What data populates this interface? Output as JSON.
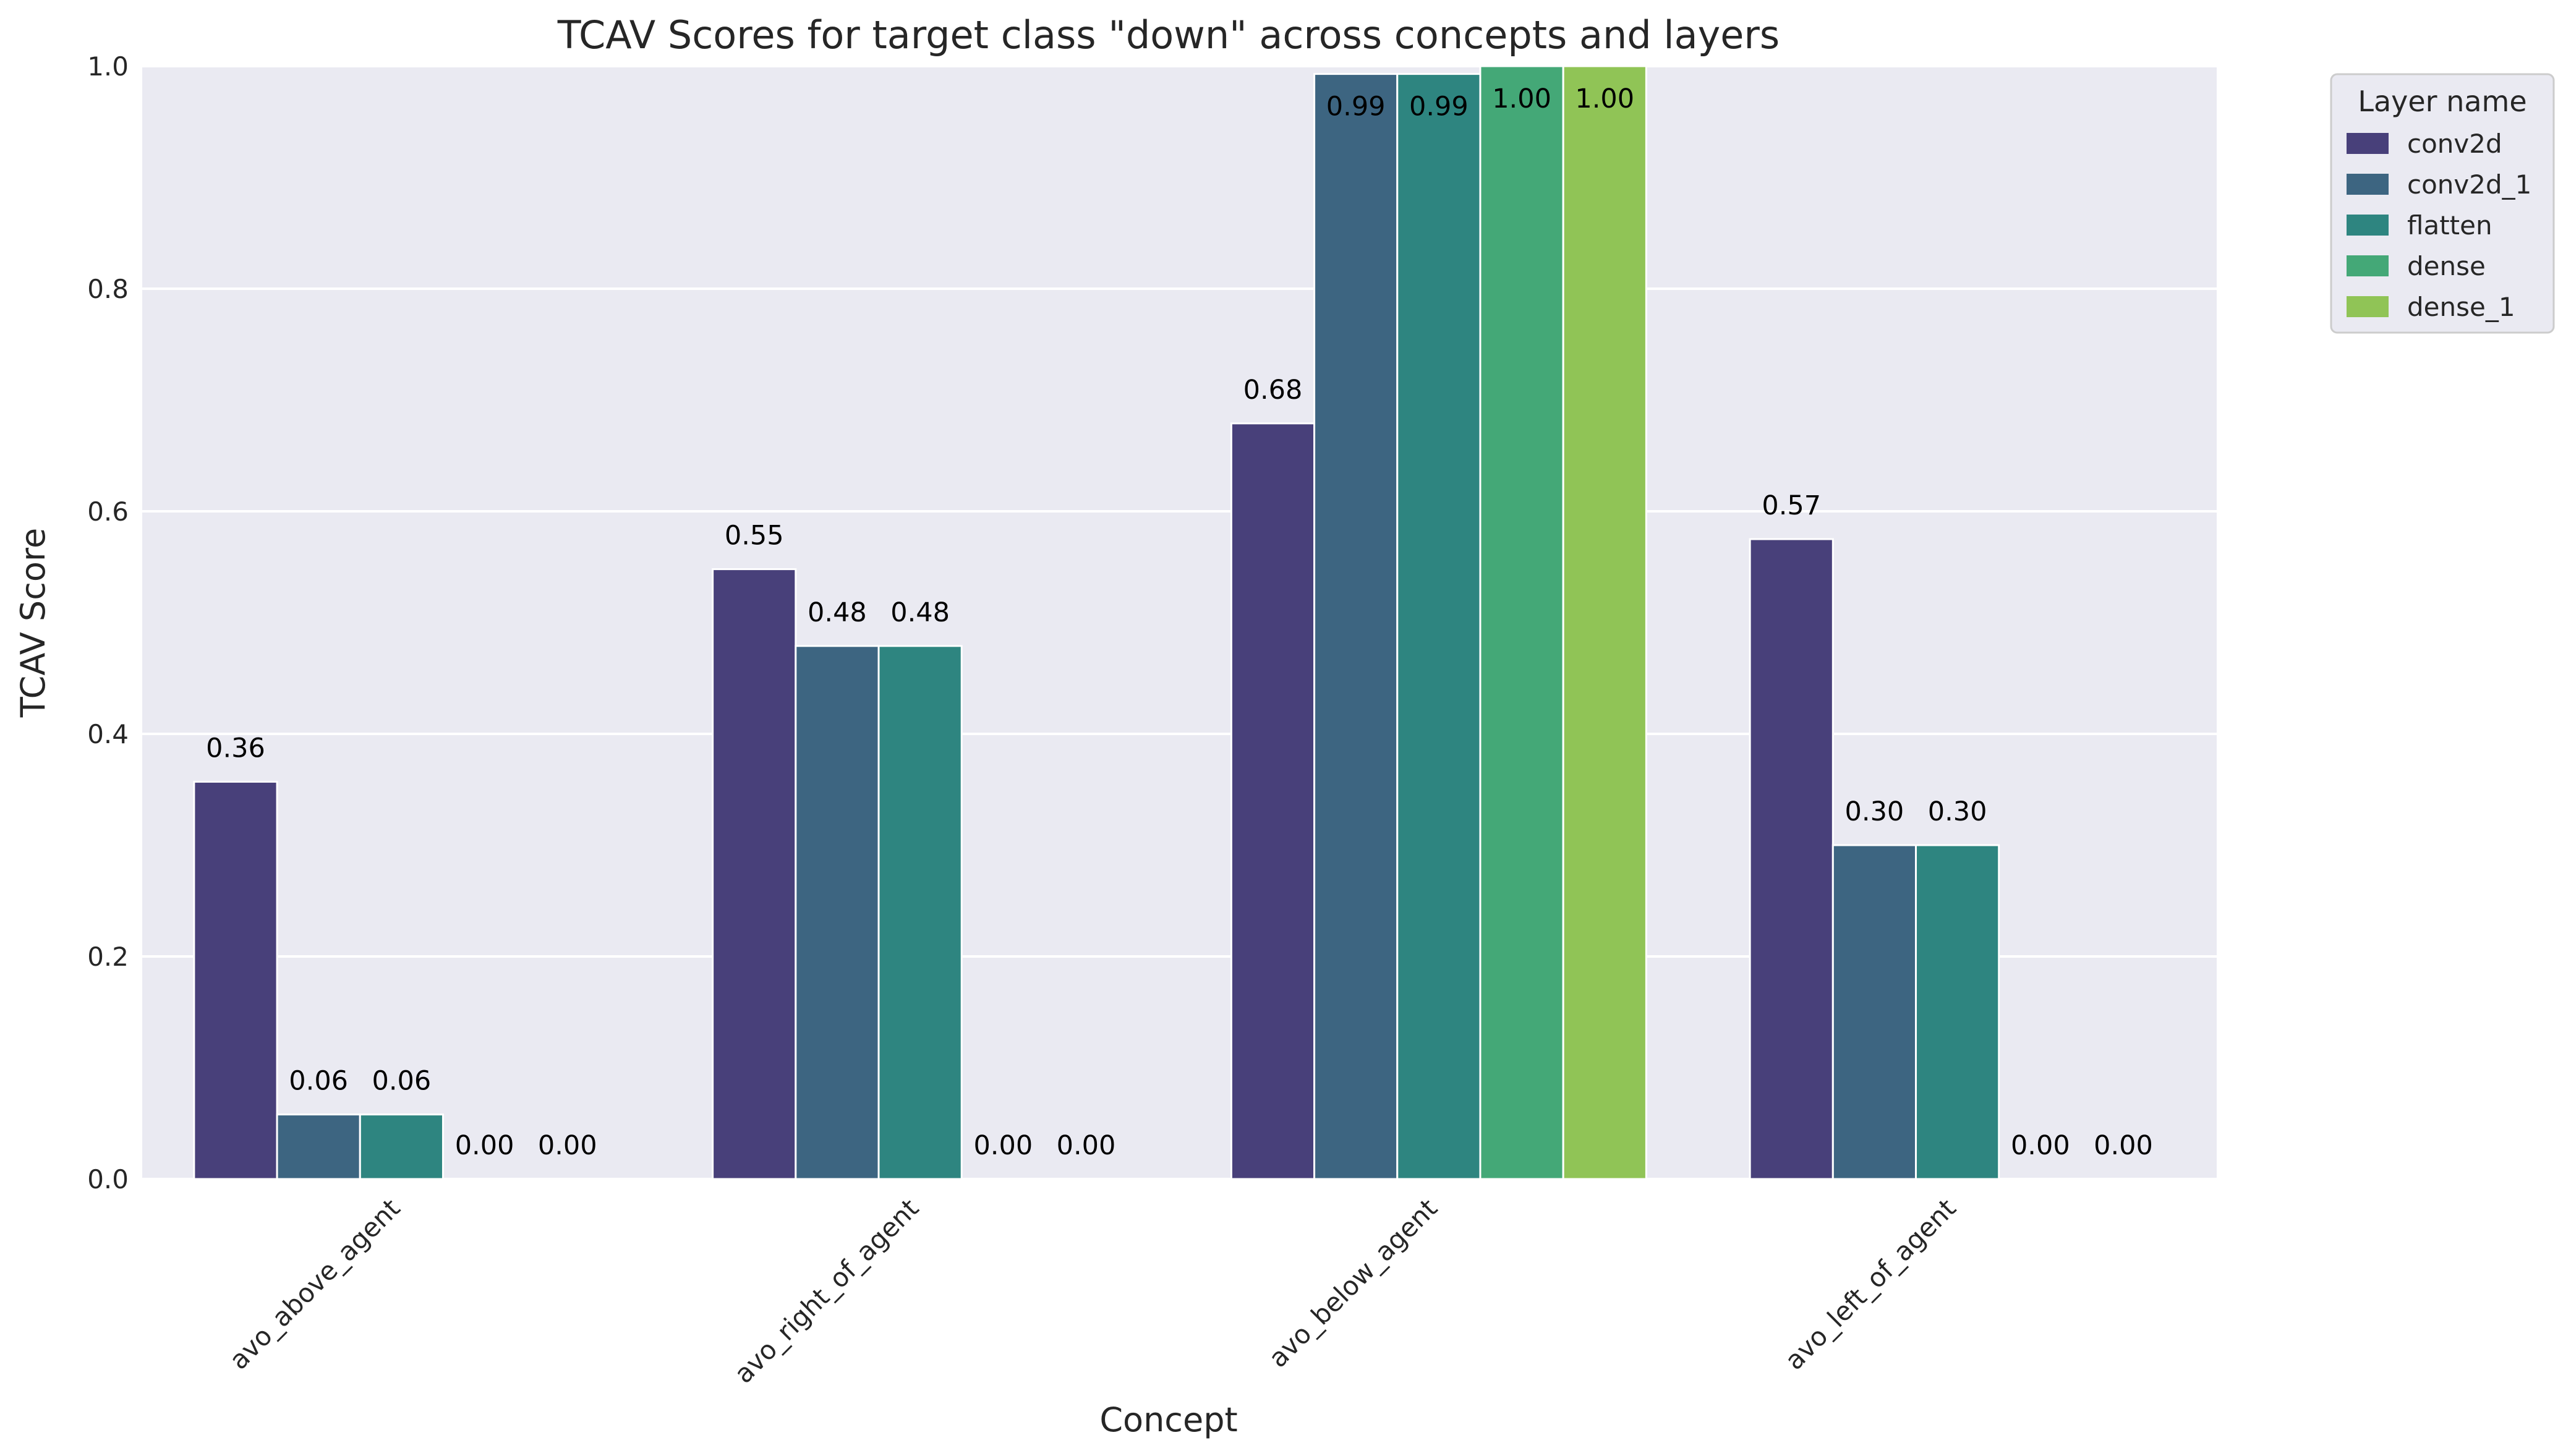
{
  "chart_data": {
    "type": "bar",
    "title": "TCAV Scores for target class \"down\" across concepts and layers",
    "xlabel": "Concept",
    "ylabel": "TCAV Score",
    "ylim": [
      0,
      1.0
    ],
    "yticks": [
      "0.0",
      "0.2",
      "0.4",
      "0.6",
      "0.8",
      "1.0"
    ],
    "grid": true,
    "legend_placement": "outside-top-right",
    "legend_title": "Layer name",
    "categories": [
      "avo_above_agent",
      "avo_right_of_agent",
      "avo_below_agent",
      "avo_left_of_agent"
    ],
    "series": [
      {
        "name": "conv2d",
        "color": "#48407a",
        "values": [
          0.357,
          0.548,
          0.679,
          0.575
        ],
        "labels": [
          "0.36",
          "0.55",
          "0.68",
          "0.57"
        ]
      },
      {
        "name": "conv2d_1",
        "color": "#3d6581",
        "values": [
          0.058,
          0.479,
          0.993,
          0.3
        ],
        "labels": [
          "0.06",
          "0.48",
          "0.99",
          "0.30"
        ]
      },
      {
        "name": "flatten",
        "color": "#2e8580",
        "values": [
          0.058,
          0.479,
          0.993,
          0.3
        ],
        "labels": [
          "0.06",
          "0.48",
          "0.99",
          "0.30"
        ]
      },
      {
        "name": "dense",
        "color": "#44a877",
        "values": [
          0.0,
          0.0,
          1.0,
          0.0
        ],
        "labels": [
          "0.00",
          "0.00",
          "1.00",
          "0.00"
        ]
      },
      {
        "name": "dense_1",
        "color": "#90c456",
        "values": [
          0.0,
          0.0,
          1.0,
          0.0
        ],
        "labels": [
          "0.00",
          "0.00",
          "1.00",
          "0.00"
        ]
      }
    ]
  }
}
